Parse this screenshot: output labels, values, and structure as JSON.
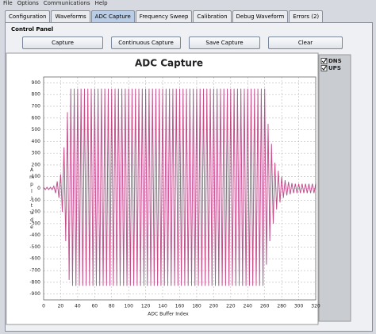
{
  "menu": [
    "File",
    "Options",
    "Communications",
    "Help"
  ],
  "tabs": [
    "Configuration",
    "Waveforms",
    "ADC Capture",
    "Frequency Sweep",
    "Calibration",
    "Debug Waveform",
    "Errors (2)"
  ],
  "active_tab": 2,
  "panel_title": "Control Panel",
  "buttons": [
    "Capture",
    "Continuous Capture",
    "Save Capture",
    "Clear"
  ],
  "chart_data": {
    "type": "line",
    "title": "ADC Capture",
    "x_label": "ADC Buffer Index",
    "y_label": "Amplitude",
    "xlim": [
      0,
      320
    ],
    "xticks": [
      0,
      20,
      40,
      60,
      80,
      100,
      120,
      140,
      160,
      180,
      200,
      220,
      240,
      260,
      280,
      300,
      320
    ],
    "ylim": [
      -950,
      950
    ],
    "yticks": [
      -900,
      -800,
      -700,
      -600,
      -500,
      -400,
      -300,
      -200,
      -100,
      0,
      100,
      200,
      300,
      400,
      500,
      600,
      700,
      800,
      900
    ],
    "grid": true,
    "legend": "right",
    "x": [
      0,
      2,
      4,
      6,
      8,
      10,
      12,
      14,
      16,
      18,
      20,
      22,
      24,
      26,
      28,
      30,
      32,
      34,
      36,
      38,
      40,
      42,
      44,
      46,
      48,
      50,
      52,
      54,
      56,
      58,
      60,
      62,
      64,
      66,
      68,
      70,
      72,
      74,
      76,
      78,
      80,
      82,
      84,
      86,
      88,
      90,
      92,
      94,
      96,
      98,
      100,
      102,
      104,
      106,
      108,
      110,
      112,
      114,
      116,
      118,
      120,
      122,
      124,
      126,
      128,
      130,
      132,
      134,
      136,
      138,
      140,
      142,
      144,
      146,
      148,
      150,
      152,
      154,
      156,
      158,
      160,
      162,
      164,
      166,
      168,
      170,
      172,
      174,
      176,
      178,
      180,
      182,
      184,
      186,
      188,
      190,
      192,
      194,
      196,
      198,
      200,
      202,
      204,
      206,
      208,
      210,
      212,
      214,
      216,
      218,
      220,
      222,
      224,
      226,
      228,
      230,
      232,
      234,
      236,
      238,
      240,
      242,
      244,
      246,
      248,
      250,
      252,
      254,
      256,
      258,
      260,
      262,
      264,
      266,
      268,
      270,
      272,
      274,
      276,
      278,
      280,
      282,
      284,
      286,
      288,
      290,
      292,
      294,
      296,
      298,
      300,
      302,
      304,
      306,
      308,
      310,
      312,
      314,
      316,
      318,
      320
    ],
    "series": [
      {
        "name": "DNS",
        "color": "#1f1fff",
        "checked": true,
        "values": [
          10,
          -10,
          10,
          -10,
          10,
          -10,
          20,
          -40,
          60,
          -80,
          120,
          -200,
          350,
          -450,
          650,
          -780,
          850,
          -830,
          850,
          -830,
          850,
          -830,
          850,
          -830,
          850,
          -830,
          850,
          -830,
          850,
          -830,
          850,
          -830,
          850,
          -830,
          850,
          -830,
          850,
          -830,
          850,
          -830,
          850,
          -830,
          850,
          -830,
          850,
          -830,
          850,
          -830,
          850,
          -830,
          850,
          -830,
          850,
          -830,
          850,
          -830,
          850,
          -830,
          850,
          -830,
          850,
          -830,
          850,
          -830,
          850,
          -830,
          850,
          -830,
          850,
          -830,
          850,
          -830,
          850,
          -830,
          850,
          -830,
          850,
          -830,
          850,
          -830,
          850,
          -830,
          850,
          -830,
          850,
          -830,
          850,
          -830,
          850,
          -830,
          850,
          -830,
          850,
          -830,
          850,
          -830,
          850,
          -830,
          850,
          -830,
          850,
          -830,
          850,
          -830,
          850,
          -830,
          850,
          -830,
          850,
          -830,
          850,
          -830,
          850,
          -830,
          850,
          -830,
          850,
          -830,
          850,
          -830,
          850,
          -830,
          850,
          -830,
          850,
          -830,
          850,
          -830,
          850,
          -830,
          850,
          -650,
          550,
          -450,
          380,
          -300,
          220,
          -180,
          150,
          -120,
          100,
          -80,
          70,
          -60,
          55,
          -50,
          45,
          -40,
          40,
          -40,
          40,
          -40,
          40,
          -40,
          40,
          -40,
          40,
          -40,
          40,
          -40,
          40
        ]
      },
      {
        "name": "UPS",
        "color": "#ff1f1f",
        "checked": true,
        "values": [
          10,
          -10,
          10,
          -10,
          10,
          -10,
          20,
          -40,
          60,
          -80,
          120,
          -200,
          350,
          -450,
          650,
          -780,
          850,
          -830,
          850,
          -830,
          850,
          -830,
          850,
          -830,
          850,
          -830,
          850,
          -830,
          850,
          -830,
          850,
          -830,
          850,
          -830,
          850,
          -830,
          850,
          -830,
          850,
          -830,
          850,
          -830,
          850,
          -830,
          850,
          -830,
          850,
          -830,
          850,
          -830,
          850,
          -830,
          850,
          -830,
          850,
          -830,
          850,
          -830,
          850,
          -830,
          850,
          -830,
          850,
          -830,
          850,
          -830,
          850,
          -830,
          850,
          -830,
          850,
          -830,
          850,
          -830,
          850,
          -830,
          850,
          -830,
          850,
          -830,
          850,
          -830,
          850,
          -830,
          850,
          -830,
          850,
          -830,
          850,
          -830,
          850,
          -830,
          850,
          -830,
          850,
          -830,
          850,
          -830,
          850,
          -830,
          850,
          -830,
          850,
          -830,
          850,
          -830,
          850,
          -830,
          850,
          -830,
          850,
          -830,
          850,
          -830,
          850,
          -830,
          850,
          -830,
          850,
          -830,
          850,
          -830,
          850,
          -830,
          850,
          -830,
          850,
          -830,
          850,
          -830,
          850,
          -650,
          550,
          -450,
          380,
          -300,
          220,
          -180,
          150,
          -120,
          100,
          -80,
          70,
          -60,
          55,
          -50,
          45,
          -40,
          40,
          -40,
          40,
          -40,
          40,
          -40,
          40,
          -40,
          40,
          -40,
          40,
          -40,
          40
        ]
      }
    ]
  }
}
